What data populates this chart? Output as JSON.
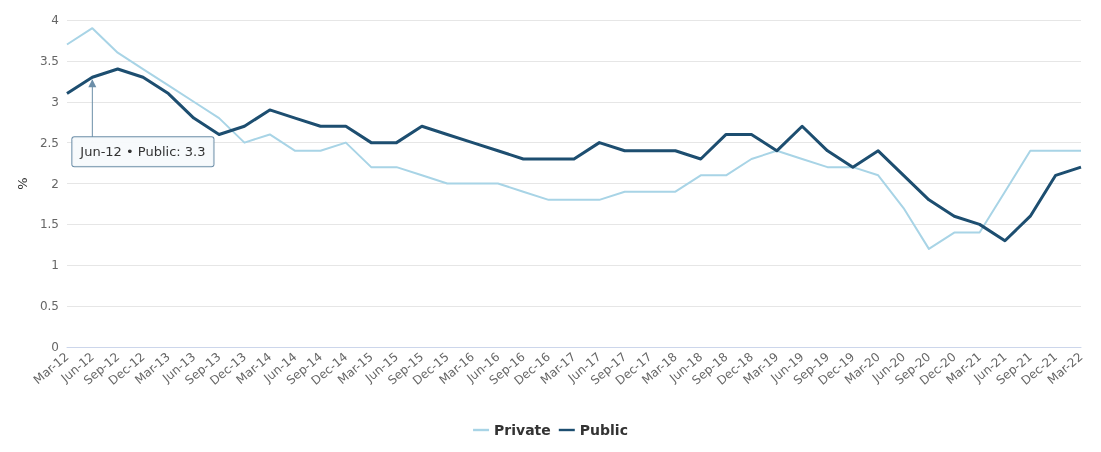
{
  "chart_data": {
    "type": "line",
    "ylabel": "%",
    "categories": [
      "Mar-12",
      "Jun-12",
      "Sep-12",
      "Dec-12",
      "Mar-13",
      "Jun-13",
      "Sep-13",
      "Dec-13",
      "Mar-14",
      "Jun-14",
      "Sep-14",
      "Dec-14",
      "Mar-15",
      "Jun-15",
      "Sep-15",
      "Dec-15",
      "Mar-16",
      "Jun-16",
      "Sep-16",
      "Dec-16",
      "Mar-17",
      "Jun-17",
      "Sep-17",
      "Dec-17",
      "Mar-18",
      "Jun-18",
      "Sep-18",
      "Dec-18",
      "Mar-19",
      "Jun-19",
      "Sep-19",
      "Dec-19",
      "Mar-20",
      "Jun-20",
      "Sep-20",
      "Dec-20",
      "Mar-21",
      "Jun-21",
      "Sep-21",
      "Dec-21",
      "Mar-22"
    ],
    "series": [
      {
        "name": "Private",
        "color": "#a8d4e6",
        "values": [
          3.7,
          3.9,
          3.6,
          3.4,
          3.2,
          3.0,
          2.8,
          2.5,
          2.6,
          2.4,
          2.4,
          2.5,
          2.2,
          2.2,
          2.1,
          2.0,
          2.0,
          2.0,
          1.9,
          1.8,
          1.8,
          1.8,
          1.9,
          1.9,
          1.9,
          2.1,
          2.1,
          2.3,
          2.4,
          2.3,
          2.2,
          2.2,
          2.1,
          1.7,
          1.2,
          1.4,
          1.4,
          1.9,
          2.4,
          2.4,
          2.4
        ]
      },
      {
        "name": "Public",
        "color": "#1d4e70",
        "values": [
          3.1,
          3.3,
          3.4,
          3.3,
          3.1,
          2.8,
          2.6,
          2.7,
          2.9,
          2.8,
          2.7,
          2.7,
          2.5,
          2.5,
          2.7,
          2.6,
          2.5,
          2.4,
          2.3,
          2.3,
          2.3,
          2.5,
          2.4,
          2.4,
          2.4,
          2.3,
          2.6,
          2.6,
          2.4,
          2.7,
          2.4,
          2.2,
          2.4,
          2.1,
          1.8,
          1.6,
          1.5,
          1.3,
          1.6,
          2.1,
          2.2
        ]
      }
    ],
    "ylim": [
      0,
      4
    ],
    "yticks": [
      0,
      0.5,
      1,
      1.5,
      2,
      2.5,
      3,
      3.5,
      4
    ],
    "grid": "y",
    "legend": "bottom",
    "marker": "none",
    "line_style": "solid",
    "annotations": [
      {
        "text": "Jun-12 • Public: 3.3",
        "x": "Jun-12",
        "y": 3.3
      }
    ]
  }
}
